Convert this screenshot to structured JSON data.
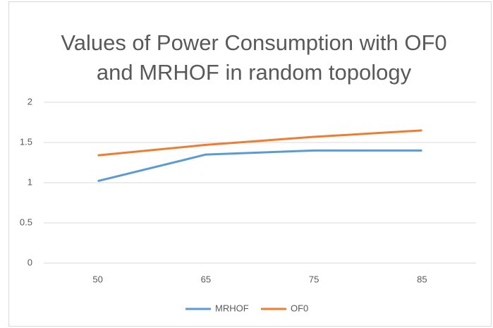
{
  "chart_data": {
    "type": "line",
    "title": "Values  of Power Consumption with OF0 and MRHOF in random topology",
    "categories": [
      "50",
      "65",
      "75",
      "85"
    ],
    "series": [
      {
        "name": "MRHOF",
        "color": "#5b9bd5",
        "values": [
          1.02,
          1.35,
          1.4,
          1.4
        ]
      },
      {
        "name": "OF0",
        "color": "#ed7d31",
        "values": [
          1.34,
          1.47,
          1.57,
          1.65
        ]
      }
    ],
    "ylim": [
      0,
      2
    ],
    "yticks": [
      0,
      0.5,
      1,
      1.5,
      2
    ],
    "grid": true,
    "legend": "bottom"
  }
}
